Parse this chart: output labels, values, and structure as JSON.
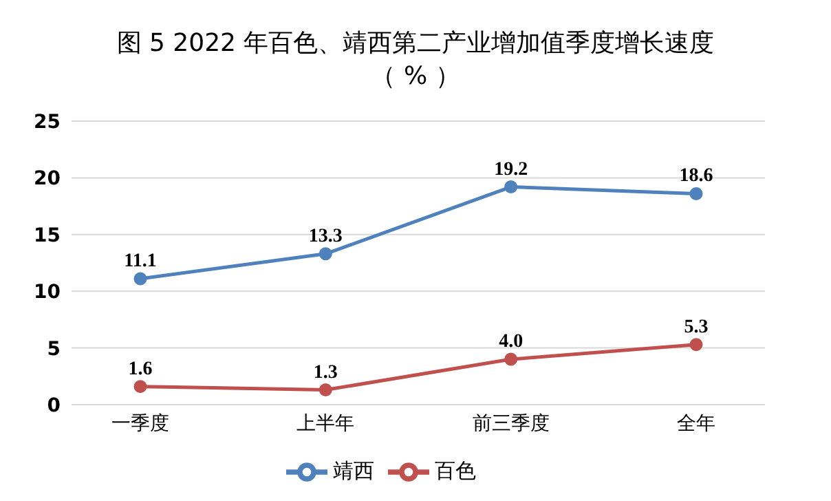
{
  "chart_data": {
    "type": "line",
    "title": "图 5  2022 年百色、靖西第二产业增加值季度增长速度",
    "subtitle": "（ % ）",
    "categories": [
      "一季度",
      "上半年",
      "前三季度",
      "全年"
    ],
    "series": [
      {
        "name": "靖西",
        "color": "#4f81bd",
        "values": [
          11.1,
          13.3,
          19.2,
          18.6
        ],
        "value_labels": [
          "11.1",
          "13.3",
          "19.2",
          "18.6"
        ]
      },
      {
        "name": "百色",
        "color": "#c0504d",
        "values": [
          1.6,
          1.3,
          4.0,
          5.3
        ],
        "value_labels": [
          "1.6",
          "1.3",
          "4.0",
          "5.3"
        ]
      }
    ],
    "ylim": [
      0,
      25
    ],
    "yticks": [
      0,
      5,
      10,
      15,
      20,
      25
    ],
    "grid": "y",
    "legend": "bottom",
    "marker": "circle",
    "line_style": "solid"
  }
}
